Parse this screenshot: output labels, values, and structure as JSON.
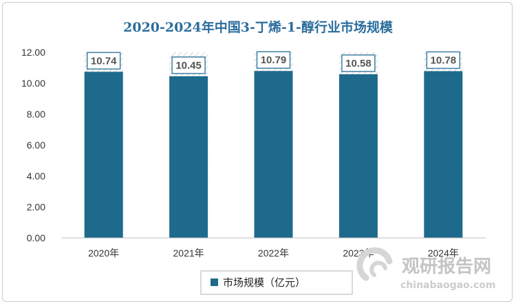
{
  "chart_data": {
    "type": "bar",
    "title": "2020-2024年中国3-丁烯-1-醇行业市场规模",
    "categories": [
      "2020年",
      "2021年",
      "2022年",
      "2023年",
      "2024年"
    ],
    "series": [
      {
        "name": "市场规模（亿元）",
        "values": [
          10.74,
          10.45,
          10.79,
          10.58,
          10.78
        ]
      }
    ],
    "data_labels": [
      "10.74",
      "10.45",
      "10.79",
      "10.58",
      "10.78"
    ],
    "yticks": [
      "0.00",
      "2.00",
      "4.00",
      "6.00",
      "8.00",
      "10.00",
      "12.00"
    ],
    "ylim": [
      0,
      12
    ],
    "grid": false,
    "legend_position": "bottom",
    "bar_color": "#1e6a8c",
    "label_border_color": "#3d7fa3"
  },
  "watermark": {
    "text_cn": "观研报告网",
    "text_en": "chinabaogao.com"
  }
}
